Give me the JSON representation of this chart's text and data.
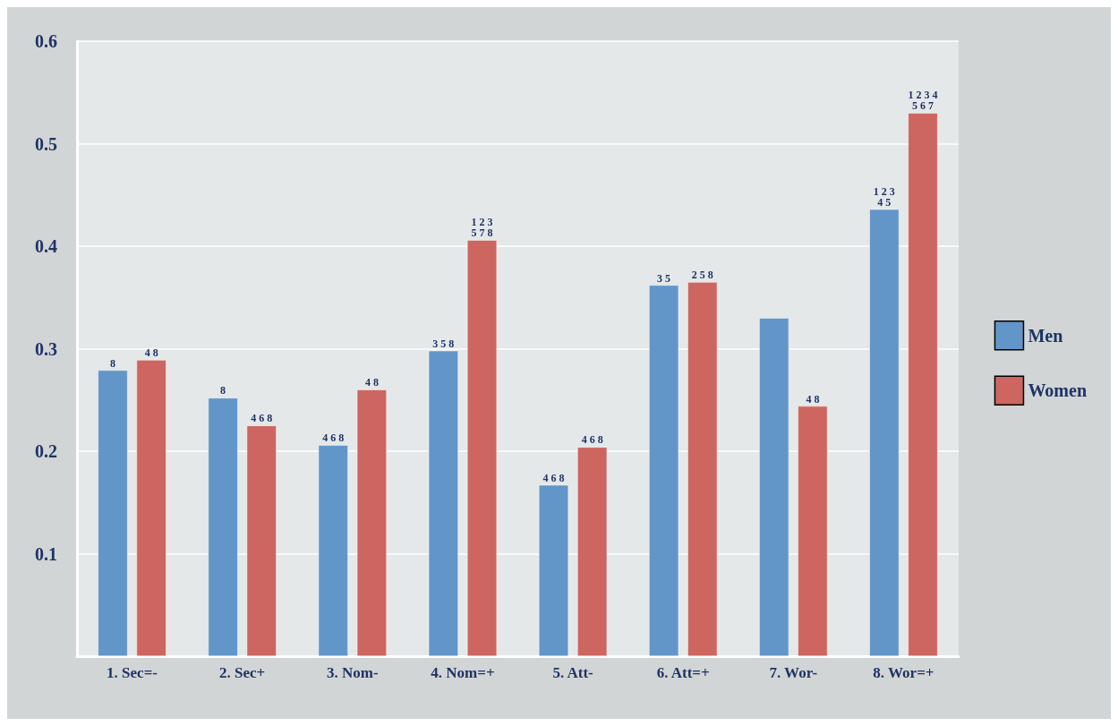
{
  "chart_data": {
    "type": "bar",
    "categories": [
      "1. Sec=-",
      "2. Sec+",
      "3. Nom-",
      "4. Nom=+",
      "5. Att-",
      "6. Att=+",
      "7. Wor-",
      "8. Wor=+"
    ],
    "series": [
      {
        "name": "Men",
        "color": "#6396c8",
        "values": [
          0.279,
          0.252,
          0.206,
          0.298,
          0.167,
          0.362,
          0.33,
          0.436
        ]
      },
      {
        "name": "Women",
        "color": "#cd6660",
        "values": [
          0.289,
          0.225,
          0.26,
          0.406,
          0.204,
          0.365,
          0.244,
          0.53
        ]
      }
    ],
    "annotations": [
      "8",
      "4 8",
      "8",
      "4 6 8",
      "4 6 8",
      "4 8",
      "3 5 8",
      "1 2 3\n5 7 8",
      "4 6 8",
      "4 6 8",
      "3 5",
      "2 5 8",
      "4 8",
      "1 2 3\n4 5",
      "1 2 3 4\n5 6 7"
    ],
    "ylim": [
      0,
      0.6
    ],
    "yticks": [
      0.1,
      0.2,
      0.3,
      0.4,
      0.5,
      0.6
    ],
    "grid": "y",
    "legend": "right"
  }
}
